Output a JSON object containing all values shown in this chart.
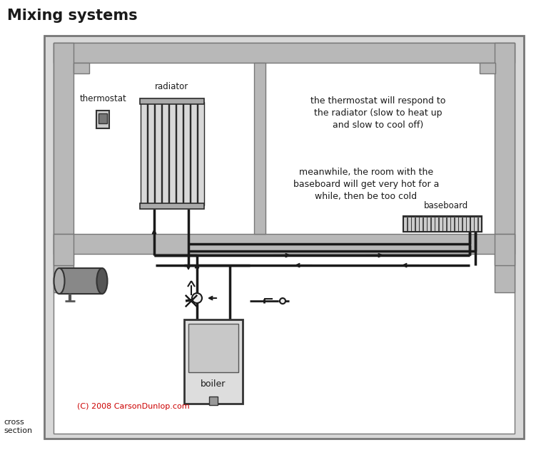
{
  "title": "Mixing systems",
  "title_fontsize": 15,
  "title_fontweight": "bold",
  "bg_color": "#ffffff",
  "wall_color": "#b8b8b8",
  "pipe_color": "#1a1a1a",
  "text_color": "#1a1a1a",
  "red_text_color": "#cc0000",
  "copyright_text": "(C) 2008 CarsonDunlop.com",
  "cross_section_text": "cross\nsection",
  "thermostat_label": "thermostat",
  "radiator_label": "radiator",
  "baseboard_label": "baseboard",
  "boiler_label": "boiler",
  "annotation1": "the thermostat will respond to\nthe radiator (slow to heat up\nand slow to cool off)",
  "annotation2": "meanwhile, the room with the\nbaseboard will get very hot for a\nwhile, then be too cold",
  "fig_width": 7.51,
  "fig_height": 6.38,
  "dpi": 100
}
